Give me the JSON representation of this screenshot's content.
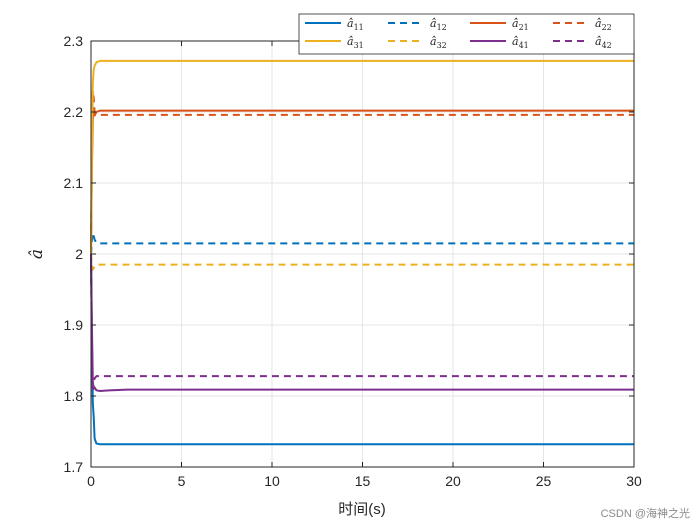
{
  "chart_data": {
    "type": "line",
    "xlabel": "时间(s)",
    "ylabel": "â",
    "xlim": [
      0,
      30
    ],
    "ylim": [
      1.7,
      2.3
    ],
    "x_ticks": [
      0,
      5,
      10,
      15,
      20,
      25,
      30
    ],
    "y_ticks": [
      1.7,
      1.8,
      1.9,
      2.0,
      2.1,
      2.2,
      2.3
    ],
    "x_tick_labels": [
      "0",
      "5",
      "10",
      "15",
      "20",
      "25",
      "30"
    ],
    "y_tick_labels": [
      "1.7",
      "1.8",
      "1.9",
      "2",
      "2.1",
      "2.2",
      "2.3"
    ],
    "grid": true,
    "legend_position": "top-right",
    "legend_columns": 4,
    "series": [
      {
        "name": "â11",
        "sub": "11",
        "color": "#0072BD",
        "dash": "solid",
        "x": [
          0,
          0.05,
          0.1,
          0.15,
          0.2,
          0.3,
          0.5,
          1,
          30
        ],
        "y": [
          2.0,
          1.88,
          1.79,
          1.77,
          1.74,
          1.733,
          1.732,
          1.732,
          1.732
        ]
      },
      {
        "name": "â12",
        "sub": "12",
        "color": "#0072BD",
        "dash": "dashed",
        "x": [
          0,
          0.05,
          0.1,
          0.2,
          0.3,
          0.5,
          1,
          30
        ],
        "y": [
          2.0,
          2.02,
          2.03,
          2.02,
          2.016,
          2.015,
          2.015,
          2.015
        ]
      },
      {
        "name": "â21",
        "sub": "21",
        "color": "#D95319",
        "dash": "solid",
        "x": [
          0,
          0.05,
          0.1,
          0.15,
          0.2,
          0.3,
          0.5,
          1,
          30
        ],
        "y": [
          2.0,
          2.12,
          2.19,
          2.2,
          2.195,
          2.2,
          2.202,
          2.202,
          2.202
        ]
      },
      {
        "name": "â22",
        "sub": "22",
        "color": "#D95319",
        "dash": "dashed",
        "x": [
          0,
          0.05,
          0.1,
          0.15,
          0.2,
          0.3,
          0.5,
          1,
          30
        ],
        "y": [
          2.0,
          2.15,
          2.23,
          2.22,
          2.2,
          2.197,
          2.196,
          2.196,
          2.196
        ]
      },
      {
        "name": "â31",
        "sub": "31",
        "color": "#EDB120",
        "dash": "solid",
        "x": [
          0,
          0.05,
          0.1,
          0.15,
          0.2,
          0.3,
          0.5,
          1,
          30
        ],
        "y": [
          2.0,
          2.14,
          2.24,
          2.26,
          2.265,
          2.27,
          2.272,
          2.272,
          2.272
        ]
      },
      {
        "name": "â32",
        "sub": "32",
        "color": "#EDB120",
        "dash": "dashed",
        "x": [
          0,
          0.05,
          0.1,
          0.2,
          0.3,
          0.5,
          1,
          30
        ],
        "y": [
          2.0,
          1.985,
          1.978,
          1.982,
          1.985,
          1.985,
          1.985,
          1.985
        ]
      },
      {
        "name": "â41",
        "sub": "41",
        "color": "#7E2F8E",
        "dash": "solid",
        "x": [
          0,
          0.05,
          0.1,
          0.15,
          0.2,
          0.3,
          0.5,
          1,
          2,
          30
        ],
        "y": [
          2.0,
          1.9,
          1.82,
          1.81,
          1.812,
          1.808,
          1.807,
          1.808,
          1.809,
          1.809
        ]
      },
      {
        "name": "â42",
        "sub": "42",
        "color": "#7E2F8E",
        "dash": "dashed",
        "x": [
          0,
          0.05,
          0.1,
          0.15,
          0.2,
          0.3,
          0.5,
          1,
          30
        ],
        "y": [
          2.0,
          1.86,
          1.81,
          1.82,
          1.825,
          1.828,
          1.828,
          1.828,
          1.828
        ]
      }
    ]
  },
  "watermark": "CSDN @海神之光"
}
